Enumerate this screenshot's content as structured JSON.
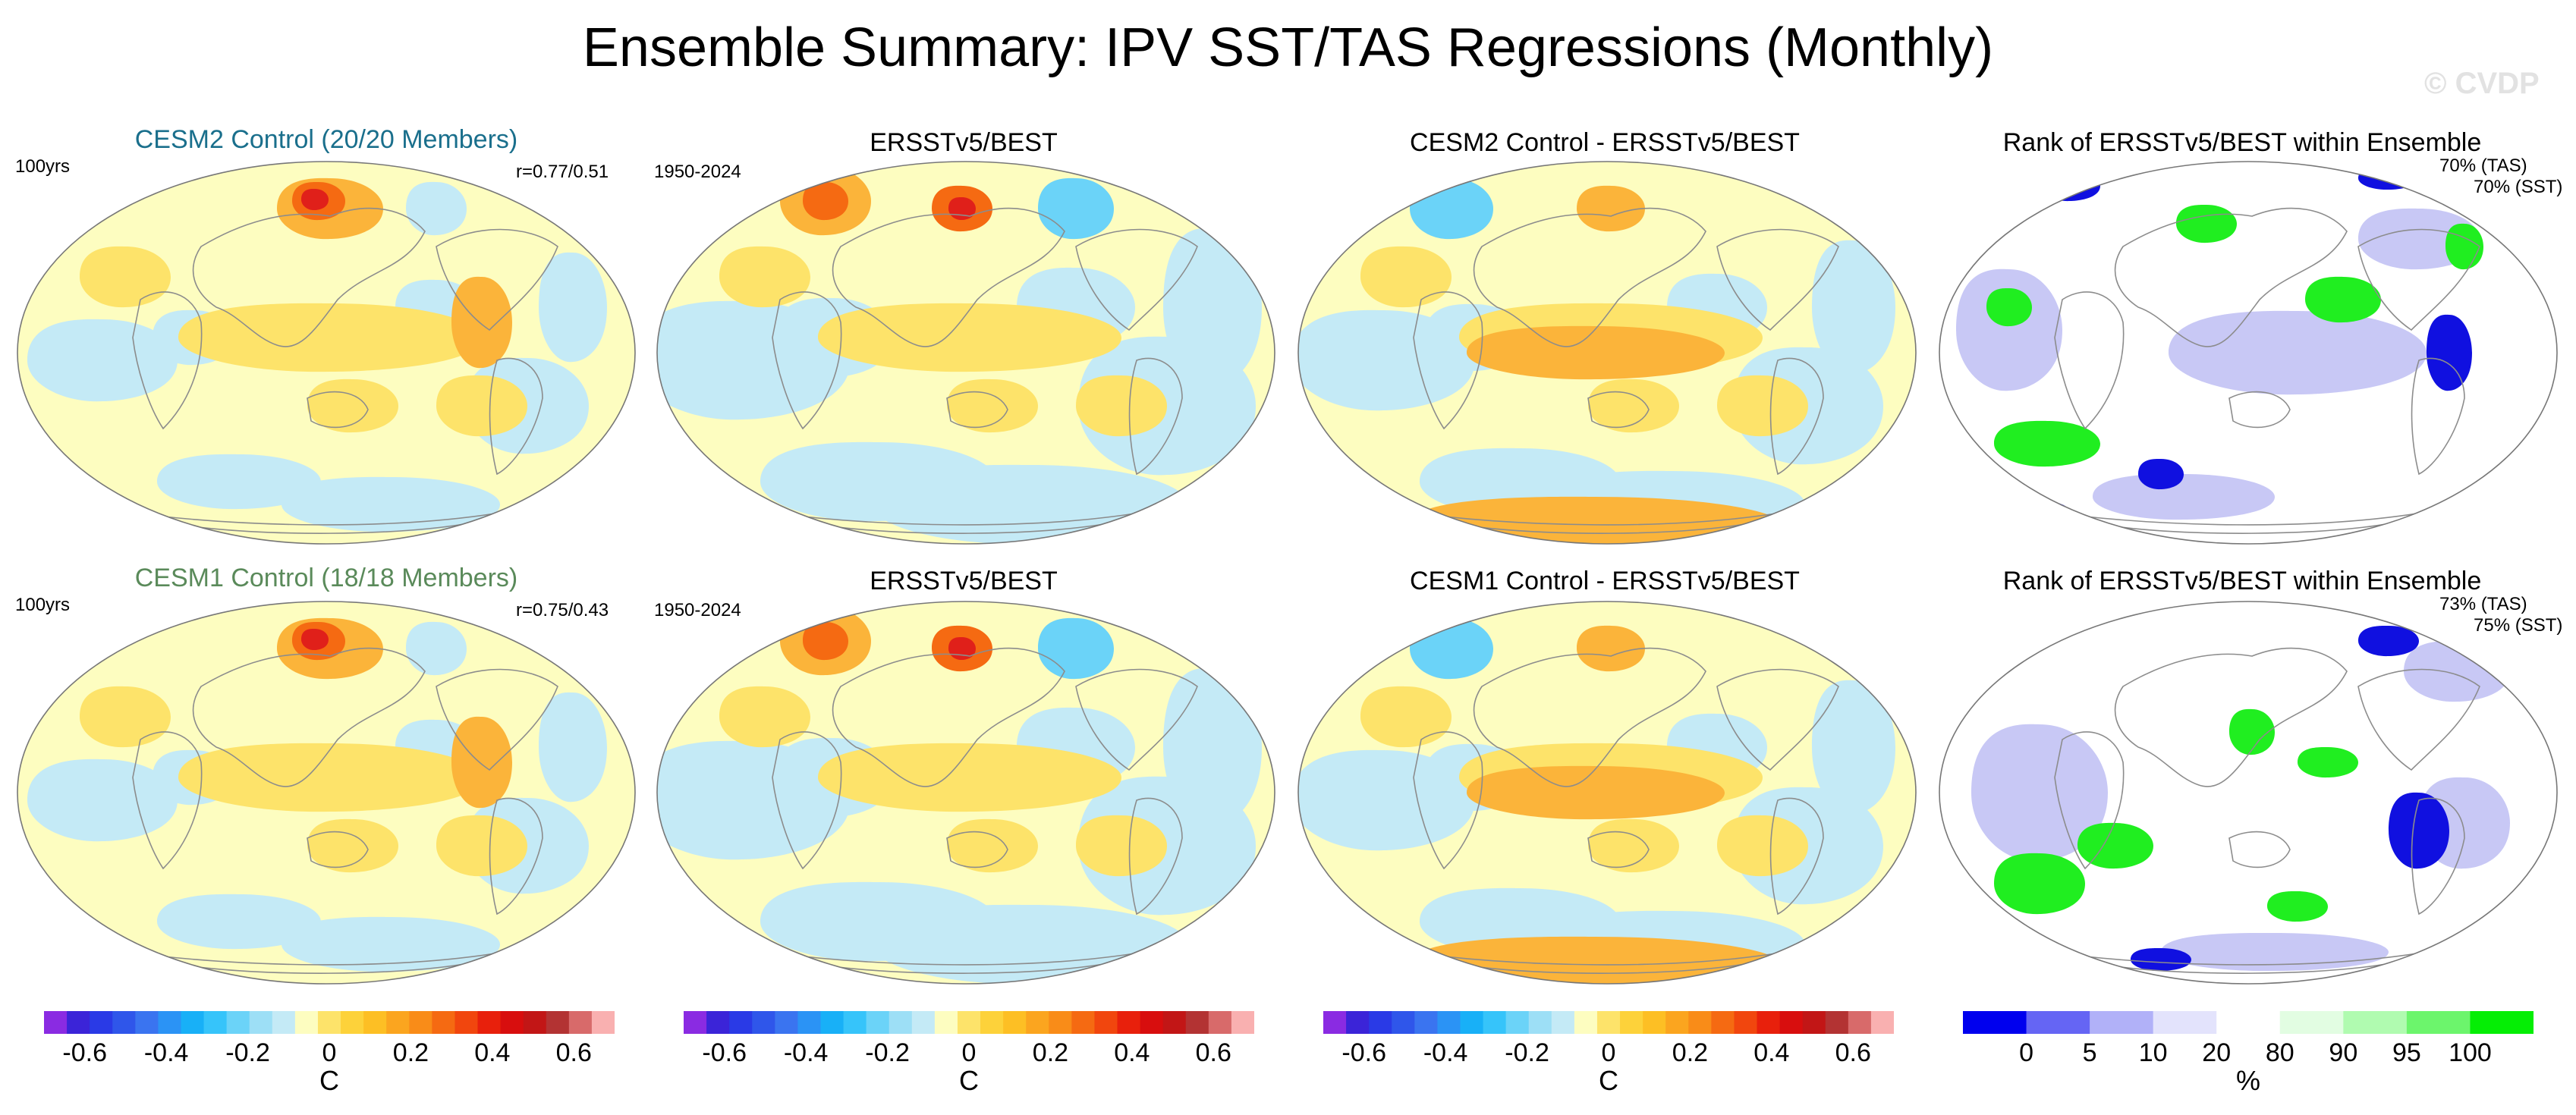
{
  "title": "Ensemble Summary: IPV SST/TAS Regressions (Monthly)",
  "watermark": "© CVDP",
  "rows": [
    {
      "panels": [
        {
          "title": "CESM2 Control (20/20 Members)",
          "title_color": "#1a6f8c",
          "left_label": "100yrs",
          "right_label": "r=0.77/0.51",
          "type": "anomaly"
        },
        {
          "title": "ERSSTv5/BEST",
          "title_color": "#000000",
          "left_label": "1950-2024",
          "type": "anomaly"
        },
        {
          "title": "CESM2 Control - ERSSTv5/BEST",
          "title_color": "#000000",
          "type": "anomaly"
        },
        {
          "title": "Rank of ERSSTv5/BEST within Ensemble",
          "title_color": "#000000",
          "right_label": "70% (TAS)",
          "right_label2": "70% (SST)",
          "type": "rank"
        }
      ]
    },
    {
      "panels": [
        {
          "title": "CESM1 Control (18/18 Members)",
          "title_color": "#5a8a5a",
          "left_label": "100yrs",
          "right_label": "r=0.75/0.43",
          "type": "anomaly"
        },
        {
          "title": "ERSSTv5/BEST",
          "title_color": "#000000",
          "left_label": "1950-2024",
          "type": "anomaly"
        },
        {
          "title": "CESM1 Control - ERSSTv5/BEST",
          "title_color": "#000000",
          "type": "anomaly"
        },
        {
          "title": "Rank of ERSSTv5/BEST within Ensemble",
          "title_color": "#000000",
          "right_label": "73% (TAS)",
          "right_label2": "75% (SST)",
          "type": "rank"
        }
      ]
    }
  ],
  "anomaly_colorbar": {
    "ticks": [
      "-0.6",
      "-0.4",
      "-0.2",
      "0",
      "0.2",
      "0.4",
      "0.6"
    ],
    "tick_positions": [
      -0.6,
      -0.4,
      -0.2,
      0,
      0.2,
      0.4,
      0.6
    ],
    "range": [
      -0.7,
      0.7
    ],
    "unit": "C",
    "colors": [
      "#8a2be2",
      "#3b24d8",
      "#2a3ae6",
      "#2f56ea",
      "#3a74f0",
      "#2b93f5",
      "#18b0f7",
      "#36c4fa",
      "#6bd3f8",
      "#9ddff6",
      "#c4eaf6",
      "#fdfdc0",
      "#fde36a",
      "#fdd23a",
      "#fdbf24",
      "#fba51f",
      "#f98c18",
      "#f56a12",
      "#f1460e",
      "#e8200c",
      "#d80e0e",
      "#c21616",
      "#b33333",
      "#d86a6a",
      "#f9b0b0"
    ]
  },
  "rank_colorbar": {
    "ticks": [
      "0",
      "5",
      "10",
      "20",
      "80",
      "90",
      "95",
      "100"
    ],
    "tick_positions": [
      0,
      5,
      10,
      20,
      80,
      90,
      95,
      100
    ],
    "unit": "%",
    "colors": [
      "#0000ee",
      "#6565f4",
      "#b1b1f8",
      "#e3e3fc",
      "#ffffff",
      "#e2fde2",
      "#b0fbb0",
      "#6cf56c",
      "#05ee05"
    ]
  },
  "fill_colors": {
    "neutral": "#fdfdc0",
    "light_blue": "#c4eaf6",
    "blue": "#6bd3f8",
    "dark_blue": "#2b93f5",
    "yellow": "#fde36a",
    "orange": "#fbb43a",
    "dark_orange": "#f56a12",
    "red": "#e0201a",
    "rank_white": "#ffffff",
    "rank_lav": "#c8c8f5",
    "rank_blue": "#1010e0",
    "rank_green": "#20ee20"
  }
}
